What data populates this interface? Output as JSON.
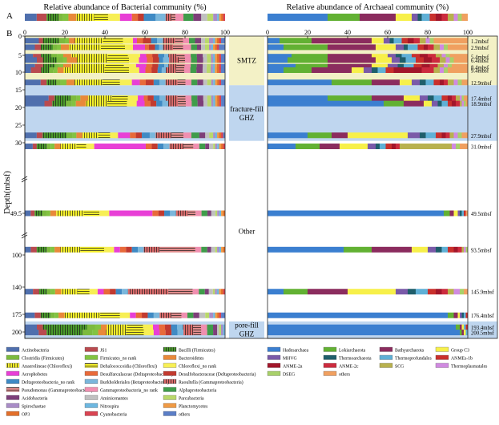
{
  "chart_data": {
    "type": "bar",
    "panel_a_label": "A",
    "panel_b_label": "B",
    "left_title": "Relative abundance of Bacterial community (%)",
    "right_title": "Relative abundance of Archaeal community (%)",
    "ylabel": "Depth(mbsf)",
    "xlim": [
      0,
      100
    ],
    "x_ticks": [
      "0",
      "20",
      "40",
      "60",
      "80",
      "100"
    ],
    "y_ticks": [
      {
        "label": "0",
        "depth": 0
      },
      {
        "label": "5",
        "depth": 5
      },
      {
        "label": "10",
        "depth": 10
      },
      {
        "label": "15",
        "depth": 15
      },
      {
        "label": "20",
        "depth": 20
      },
      {
        "label": "25",
        "depth": 25
      },
      {
        "label": "30",
        "depth": 30
      },
      {
        "label": "49.5",
        "depth": 49.5
      },
      {
        "label": "100",
        "depth": 100
      },
      {
        "label": "140",
        "depth": 140
      },
      {
        "label": "175",
        "depth": 175
      },
      {
        "label": "200",
        "depth": 200
      }
    ],
    "zones": [
      {
        "name": "SMTZ",
        "from": 0,
        "to": 13.7,
        "color": "#f3f1c6"
      },
      {
        "name": "fracture-fill GHZ",
        "from": 13.7,
        "to": 29.5,
        "color": "#bfd6ef"
      },
      {
        "name": "Other",
        "from": 29.5,
        "to": 185,
        "color": "#ffffff"
      },
      {
        "name": "pore-fill GHZ",
        "from": 185,
        "to": 205,
        "color": "#bfd6ef"
      }
    ],
    "samples": [
      {
        "label": "1.2mbsf",
        "depth": 1.2
      },
      {
        "label": "2.9mbsf",
        "depth": 2.9
      },
      {
        "label": "5.4mbsf",
        "depth": 5.4
      },
      {
        "label": "6.4mbsf",
        "depth": 6.4
      },
      {
        "label": "8.4mbsf",
        "depth": 8.4
      },
      {
        "label": "9.4mbsf",
        "depth": 9.4
      },
      {
        "label": "12.9mbsf",
        "depth": 12.9
      },
      {
        "label": "17.4mbsf",
        "depth": 17.4
      },
      {
        "label": "18.9mbsf",
        "depth": 18.9
      },
      {
        "label": "27.9mbsf",
        "depth": 27.9
      },
      {
        "label": "31.0mbsf",
        "depth": 31.0
      },
      {
        "label": "49.5mbsf",
        "depth": 49.5
      },
      {
        "label": "93.5mbsf",
        "depth": 93.5
      },
      {
        "label": "145.9mbsf",
        "depth": 145.9
      },
      {
        "label": "176.4mbsf",
        "depth": 176.4
      },
      {
        "label": "193.4mbsf",
        "depth": 193.4
      },
      {
        "label": "200.5mbsf",
        "depth": 200.5
      }
    ],
    "bacteria_taxa": [
      {
        "name": "Actinobacteria",
        "color": "#4f6fad",
        "pattern": "none"
      },
      {
        "name": "JS1",
        "color": "#b94a4f",
        "pattern": "none"
      },
      {
        "name": "Bacilli (Firmicutes)",
        "color": "#4a9a2b",
        "pattern": "vlines"
      },
      {
        "name": "Clostridia (Firmicutes)",
        "color": "#7cba3e",
        "pattern": "none"
      },
      {
        "name": "Firmicutes_no rank",
        "color": "#82c341",
        "pattern": "none"
      },
      {
        "name": "Bacteroidetes",
        "color": "#e8893a",
        "pattern": "none"
      },
      {
        "name": "Anaerolineae (Chloroflexi)",
        "color": "#f5ef2a",
        "pattern": "vlines"
      },
      {
        "name": "Dehalococcoidia (Chloroflexi)",
        "color": "#f5ef2a",
        "pattern": "hlines"
      },
      {
        "name": "Chloroflexi_no rank",
        "color": "#f7ef55",
        "pattern": "none"
      },
      {
        "name": "Aerophobetes",
        "color": "#e83fd6",
        "pattern": "none"
      },
      {
        "name": "Desulfarculaceae (Deltaproteobacteria)",
        "color": "#e86a3a",
        "pattern": "none"
      },
      {
        "name": "Desulfobacteraceae (Deltaproteobacteria)",
        "color": "#c23a2f",
        "pattern": "none"
      },
      {
        "name": "Deltaproteobacteria_no rank",
        "color": "#3f8ac4",
        "pattern": "none"
      },
      {
        "name": "Burkholderiales (Betaproteobacteria)",
        "color": "#7ab6db",
        "pattern": "none"
      },
      {
        "name": "Raoultella (Gammaproteobacteria)",
        "color": "#d96b6b",
        "pattern": "vlines"
      },
      {
        "name": "Pseudomonas (Gammaproteobacteria)",
        "color": "#e08c8c",
        "pattern": "hlines"
      },
      {
        "name": "Gammaproteobacteria_no rank",
        "color": "#f08fb0",
        "pattern": "none"
      },
      {
        "name": "Alphaproteobacteria",
        "color": "#3f9c4a",
        "pattern": "none"
      },
      {
        "name": "Acidobacteria",
        "color": "#7d3f79",
        "pattern": "none"
      },
      {
        "name": "Aminicenantes",
        "color": "#c0c0c0",
        "pattern": "none"
      },
      {
        "name": "Parcubacteria",
        "color": "#b9d86a",
        "pattern": "none"
      },
      {
        "name": "Spirochaetae",
        "color": "#a98cc7",
        "pattern": "none"
      },
      {
        "name": "Nitrospira",
        "color": "#6db7e0",
        "pattern": "none"
      },
      {
        "name": "Planctomycetes",
        "color": "#ef9a45",
        "pattern": "none"
      },
      {
        "name": "OP3",
        "color": "#e26f2a",
        "pattern": "none"
      },
      {
        "name": "Cyanobacteria",
        "color": "#d94452",
        "pattern": "none"
      },
      {
        "name": "others",
        "color": "#5b7ec6",
        "pattern": "none"
      }
    ],
    "archaea_taxa": [
      {
        "name": "Hadesarchaea",
        "color": "#3b7fd0",
        "pattern": "none"
      },
      {
        "name": "Lokiarchaeota",
        "color": "#62b133",
        "pattern": "none"
      },
      {
        "name": "Bathyarchaeota",
        "color": "#8b2c5e",
        "pattern": "none"
      },
      {
        "name": "Group C3",
        "color": "#f7f04a",
        "pattern": "none"
      },
      {
        "name": "MHVG",
        "color": "#7a5aa8",
        "pattern": "none"
      },
      {
        "name": "Thermoarchaeota",
        "color": "#1f5e6b",
        "pattern": "none"
      },
      {
        "name": "Thermoprofundales",
        "color": "#5fb0d6",
        "pattern": "none"
      },
      {
        "name": "ANMEs-1b",
        "color": "#c9302c",
        "pattern": "none"
      },
      {
        "name": "ANME-2a",
        "color": "#a2162a",
        "pattern": "none"
      },
      {
        "name": "ANME-2c",
        "color": "#cc2b3e",
        "pattern": "none"
      },
      {
        "name": "SCG",
        "color": "#b8b14e",
        "pattern": "none"
      },
      {
        "name": "Thermoplasmatales",
        "color": "#d08ae0",
        "pattern": "none"
      },
      {
        "name": "DSEG",
        "color": "#a8d06a",
        "pattern": "none"
      },
      {
        "name": "others",
        "color": "#f0a060",
        "pattern": "none"
      }
    ],
    "bacteria_summary": [
      6,
      5,
      6,
      2,
      3,
      4,
      9,
      7,
      6,
      6,
      3,
      3,
      6,
      5,
      3,
      2,
      4,
      5,
      4,
      3,
      3,
      2,
      1,
      1,
      1,
      1,
      0
    ],
    "archaea_summary": [
      30,
      16,
      18,
      8,
      3,
      2,
      4,
      3,
      3,
      3,
      3,
      2,
      2,
      3
    ],
    "bacteria_rows": [
      [
        7,
        2,
        8,
        3,
        2,
        3,
        14,
        10,
        5,
        2,
        3,
        4,
        3,
        3,
        6,
        4,
        3,
        3,
        3,
        2,
        2,
        2,
        1,
        1,
        1,
        1,
        2
      ],
      [
        5,
        3,
        6,
        2,
        2,
        4,
        16,
        12,
        4,
        6,
        2,
        3,
        2,
        2,
        5,
        5,
        4,
        3,
        2,
        2,
        2,
        1,
        1,
        1,
        1,
        1,
        3
      ],
      [
        4,
        4,
        5,
        3,
        3,
        4,
        18,
        10,
        6,
        3,
        3,
        3,
        3,
        2,
        4,
        4,
        3,
        3,
        3,
        2,
        2,
        1,
        1,
        1,
        1,
        1,
        2
      ],
      [
        6,
        3,
        7,
        3,
        2,
        5,
        15,
        11,
        5,
        4,
        3,
        3,
        2,
        3,
        5,
        3,
        3,
        3,
        3,
        2,
        2,
        1,
        1,
        1,
        1,
        1,
        2
      ],
      [
        5,
        4,
        6,
        2,
        2,
        4,
        17,
        9,
        6,
        5,
        3,
        3,
        3,
        2,
        4,
        4,
        3,
        3,
        3,
        2,
        2,
        1,
        1,
        1,
        1,
        1,
        2
      ],
      [
        3,
        5,
        4,
        2,
        2,
        3,
        20,
        12,
        5,
        3,
        3,
        3,
        2,
        2,
        5,
        4,
        3,
        3,
        3,
        2,
        2,
        1,
        1,
        1,
        1,
        1,
        2
      ],
      [
        8,
        3,
        5,
        2,
        3,
        4,
        14,
        9,
        6,
        4,
        3,
        4,
        3,
        3,
        6,
        4,
        3,
        3,
        3,
        2,
        2,
        1,
        1,
        1,
        1,
        1,
        2
      ],
      [
        12,
        3,
        8,
        3,
        2,
        4,
        12,
        8,
        5,
        3,
        2,
        3,
        3,
        3,
        6,
        4,
        3,
        3,
        3,
        2,
        2,
        1,
        1,
        1,
        1,
        1,
        2
      ],
      [
        10,
        4,
        7,
        3,
        2,
        5,
        11,
        10,
        5,
        4,
        3,
        3,
        3,
        3,
        5,
        4,
        3,
        3,
        3,
        2,
        2,
        1,
        1,
        1,
        1,
        1,
        2
      ],
      [
        6,
        3,
        12,
        3,
        2,
        3,
        8,
        6,
        4,
        6,
        3,
        3,
        4,
        3,
        8,
        6,
        4,
        4,
        3,
        2,
        2,
        1,
        1,
        1,
        1,
        1,
        1
      ],
      [
        4,
        2,
        5,
        2,
        2,
        3,
        8,
        5,
        4,
        26,
        3,
        3,
        3,
        3,
        7,
        5,
        3,
        3,
        2,
        2,
        1,
        1,
        1,
        1,
        1,
        1,
        0
      ],
      [
        3,
        2,
        4,
        2,
        2,
        3,
        14,
        8,
        5,
        22,
        3,
        3,
        3,
        3,
        6,
        4,
        3,
        3,
        2,
        2,
        1,
        1,
        1,
        1,
        1,
        0,
        0
      ],
      [
        3,
        3,
        5,
        2,
        2,
        3,
        10,
        12,
        5,
        3,
        3,
        3,
        3,
        3,
        8,
        18,
        3,
        3,
        2,
        2,
        1,
        1,
        1,
        1,
        1,
        0,
        0
      ],
      [
        4,
        3,
        4,
        2,
        2,
        3,
        8,
        6,
        4,
        3,
        3,
        3,
        3,
        3,
        20,
        12,
        3,
        3,
        2,
        2,
        1,
        1,
        1,
        1,
        1,
        1,
        0
      ],
      [
        5,
        3,
        5,
        2,
        2,
        3,
        18,
        10,
        5,
        3,
        3,
        3,
        3,
        3,
        6,
        5,
        3,
        3,
        3,
        3,
        2,
        2,
        1,
        1,
        1,
        1,
        2
      ],
      [
        6,
        3,
        22,
        4,
        3,
        3,
        10,
        8,
        5,
        3,
        3,
        3,
        3,
        3,
        5,
        4,
        3,
        3,
        2,
        1,
        1,
        1,
        1,
        0,
        0,
        0,
        0
      ],
      [
        7,
        4,
        18,
        5,
        3,
        4,
        10,
        9,
        5,
        3,
        3,
        3,
        3,
        3,
        5,
        4,
        3,
        3,
        2,
        1,
        1,
        1,
        1,
        0,
        0,
        0,
        0
      ]
    ],
    "archaea_rows": [
      [
        6,
        16,
        30,
        6,
        3,
        2,
        4,
        3,
        3,
        3,
        3,
        2,
        2,
        17
      ],
      [
        8,
        22,
        24,
        10,
        4,
        2,
        5,
        3,
        2,
        3,
        3,
        2,
        2,
        10
      ],
      [
        12,
        18,
        22,
        8,
        4,
        3,
        5,
        4,
        4,
        4,
        3,
        2,
        2,
        9
      ],
      [
        10,
        20,
        24,
        8,
        4,
        3,
        5,
        4,
        4,
        4,
        3,
        2,
        2,
        7
      ],
      [
        14,
        16,
        22,
        8,
        5,
        3,
        5,
        4,
        4,
        4,
        3,
        2,
        2,
        8
      ],
      [
        8,
        14,
        20,
        6,
        4,
        3,
        4,
        4,
        14,
        6,
        3,
        2,
        2,
        10
      ],
      [
        32,
        20,
        14,
        6,
        4,
        3,
        4,
        3,
        2,
        2,
        3,
        2,
        2,
        3
      ],
      [
        30,
        22,
        16,
        8,
        4,
        3,
        4,
        3,
        2,
        2,
        2,
        1,
        1,
        2
      ],
      [
        58,
        10,
        10,
        4,
        3,
        2,
        3,
        2,
        2,
        2,
        1,
        1,
        1,
        1
      ],
      [
        20,
        12,
        8,
        30,
        6,
        3,
        5,
        3,
        2,
        2,
        2,
        2,
        2,
        3
      ],
      [
        14,
        12,
        10,
        14,
        4,
        2,
        3,
        3,
        2,
        2,
        26,
        2,
        2,
        4
      ],
      [
        88,
        3,
        2,
        2,
        1,
        1,
        1,
        1,
        0,
        0,
        0,
        0,
        0,
        1
      ],
      [
        38,
        14,
        20,
        8,
        4,
        3,
        3,
        3,
        2,
        2,
        1,
        1,
        1,
        0
      ],
      [
        8,
        12,
        20,
        24,
        6,
        4,
        6,
        4,
        3,
        3,
        3,
        3,
        2,
        2
      ],
      [
        90,
        3,
        2,
        1,
        1,
        1,
        1,
        1,
        0,
        0,
        0,
        0,
        0,
        0
      ],
      [
        94,
        2,
        1,
        1,
        0,
        0,
        1,
        1,
        0,
        0,
        0,
        0,
        0,
        0
      ],
      [
        96,
        1,
        1,
        1,
        0,
        0,
        1,
        0,
        0,
        0,
        0,
        0,
        0,
        0
      ]
    ]
  }
}
